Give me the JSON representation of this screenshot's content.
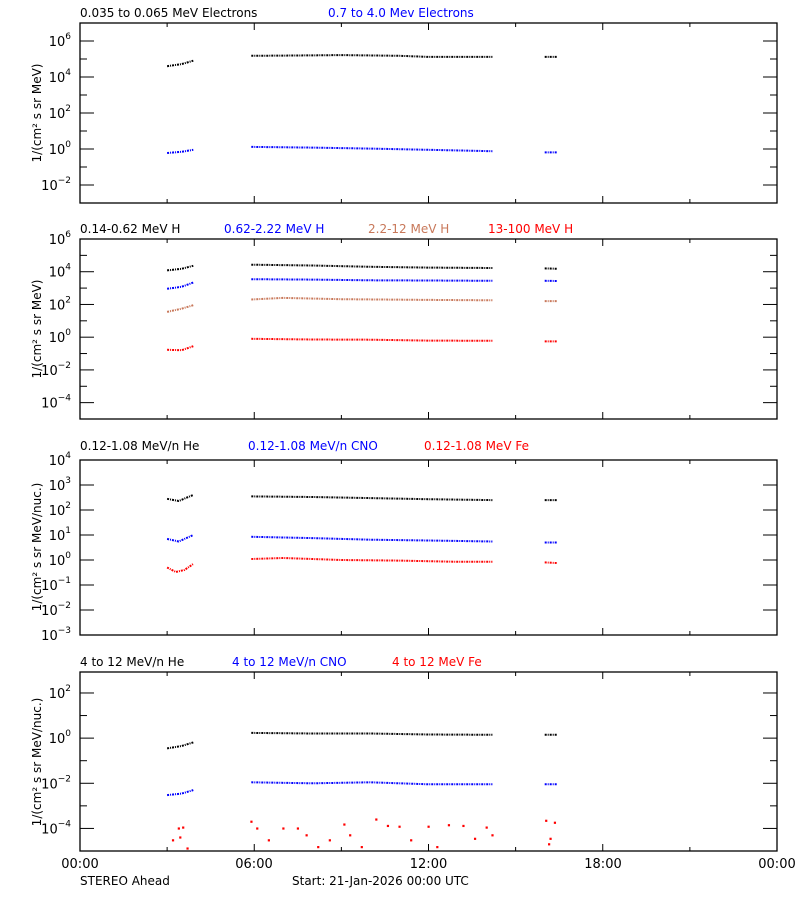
{
  "chart_data": [
    {
      "type": "scatter",
      "ylabel": "1/(cm² s sr MeV)",
      "yscale": "log",
      "ylim": [
        0.001,
        10000000
      ],
      "y_ticks_labeled": [
        -2,
        0,
        2,
        4,
        6
      ],
      "legend": [
        "0.035 to 0.065 MeV Electrons",
        "0.7 to 4.0 Mev Electrons"
      ],
      "series": [
        {
          "name": "0.035 to 0.065 MeV Electrons",
          "color": "#000000",
          "segments": [
            [
              [
                3.0,
                40000
              ],
              [
                3.5,
                52000
              ],
              [
                3.9,
                80000
              ]
            ],
            [
              [
                5.9,
                150000
              ],
              [
                7,
                155000
              ],
              [
                9,
                165000
              ],
              [
                11,
                150000
              ],
              [
                12,
                130000
              ],
              [
                14.2,
                130000
              ]
            ],
            [
              [
                16.0,
                130000
              ],
              [
                16.45,
                130000
              ]
            ]
          ]
        },
        {
          "name": "0.7 to 4.0 Mev Electrons",
          "color": "#0000ff",
          "segments": [
            [
              [
                3.0,
                0.6
              ],
              [
                3.5,
                0.7
              ],
              [
                3.9,
                0.9
              ]
            ],
            [
              [
                5.9,
                1.3
              ],
              [
                8,
                1.2
              ],
              [
                10,
                1.05
              ],
              [
                12,
                0.9
              ],
              [
                14.2,
                0.75
              ]
            ],
            [
              [
                16.0,
                0.65
              ],
              [
                16.45,
                0.65
              ]
            ]
          ]
        }
      ]
    },
    {
      "type": "scatter",
      "ylabel": "1/(cm² s sr MeV)",
      "yscale": "log",
      "ylim": [
        1e-05,
        1000000
      ],
      "y_ticks_labeled": [
        -4,
        -2,
        0,
        2,
        4,
        6
      ],
      "legend": [
        "0.14-0.62 MeV H",
        "0.62-2.22 MeV H",
        "2.2-12 MeV H",
        "13-100 MeV H"
      ],
      "series": [
        {
          "name": "0.14-0.62 MeV H",
          "color": "#000000",
          "segments": [
            [
              [
                3.0,
                12000
              ],
              [
                3.5,
                15000
              ],
              [
                3.9,
                23000
              ]
            ],
            [
              [
                5.9,
                27000
              ],
              [
                8,
                24000
              ],
              [
                10,
                20000
              ],
              [
                12,
                18000
              ],
              [
                14.2,
                17000
              ]
            ],
            [
              [
                16.0,
                16000
              ],
              [
                16.45,
                15000
              ]
            ]
          ]
        },
        {
          "name": "0.62-2.22 MeV H",
          "color": "#0000ff",
          "segments": [
            [
              [
                3.0,
                900
              ],
              [
                3.5,
                1200
              ],
              [
                3.9,
                2200
              ]
            ],
            [
              [
                5.9,
                3500
              ],
              [
                8,
                3300
              ],
              [
                10,
                3000
              ],
              [
                12,
                2900
              ],
              [
                14.2,
                2800
              ]
            ],
            [
              [
                16.0,
                2800
              ],
              [
                16.45,
                2700
              ]
            ]
          ]
        },
        {
          "name": "2.2-12 MeV H",
          "color": "#c8785a",
          "segments": [
            [
              [
                3.0,
                35
              ],
              [
                3.5,
                55
              ],
              [
                3.9,
                90
              ]
            ],
            [
              [
                5.9,
                200
              ],
              [
                7,
                250
              ],
              [
                9,
                210
              ],
              [
                12,
                190
              ],
              [
                14.2,
                180
              ]
            ],
            [
              [
                16.0,
                160
              ],
              [
                16.45,
                160
              ]
            ]
          ]
        },
        {
          "name": "13-100 MeV H",
          "color": "#ff0000",
          "segments": [
            [
              [
                3.0,
                0.17
              ],
              [
                3.5,
                0.16
              ],
              [
                3.9,
                0.28
              ]
            ],
            [
              [
                5.9,
                0.8
              ],
              [
                8,
                0.72
              ],
              [
                10,
                0.7
              ],
              [
                12,
                0.62
              ],
              [
                14.2,
                0.6
              ]
            ],
            [
              [
                16.0,
                0.55
              ],
              [
                16.45,
                0.55
              ]
            ]
          ]
        }
      ]
    },
    {
      "type": "scatter",
      "ylabel": "1/(cm² s sr MeV/nuc.)",
      "yscale": "log",
      "ylim": [
        0.001,
        10000
      ],
      "y_ticks_labeled": [
        -3,
        -2,
        -1,
        0,
        1,
        2,
        3,
        4
      ],
      "legend": [
        "0.12-1.08 MeV/n He",
        "0.12-1.08 MeV/n CNO",
        "0.12-1.08 MeV Fe"
      ],
      "series": [
        {
          "name": "0.12-1.08 MeV/n He",
          "color": "#000000",
          "segments": [
            [
              [
                3.0,
                280
              ],
              [
                3.4,
                230
              ],
              [
                3.9,
                400
              ]
            ],
            [
              [
                5.9,
                350
              ],
              [
                8,
                330
              ],
              [
                10,
                300
              ],
              [
                12,
                270
              ],
              [
                14.2,
                250
              ]
            ],
            [
              [
                16.0,
                250
              ],
              [
                16.45,
                250
              ]
            ]
          ]
        },
        {
          "name": "0.12-1.08 MeV/n CNO",
          "color": "#0000ff",
          "segments": [
            [
              [
                3.0,
                7
              ],
              [
                3.4,
                5.5
              ],
              [
                3.9,
                10
              ]
            ],
            [
              [
                5.9,
                8.5
              ],
              [
                8,
                7.5
              ],
              [
                10,
                6.5
              ],
              [
                12,
                6
              ],
              [
                14.2,
                5.5
              ]
            ],
            [
              [
                16.0,
                5
              ],
              [
                16.45,
                5
              ]
            ]
          ]
        },
        {
          "name": "0.12-1.08 MeV Fe",
          "color": "#ff0000",
          "segments": [
            [
              [
                3.0,
                0.5
              ],
              [
                3.3,
                0.33
              ],
              [
                3.6,
                0.4
              ],
              [
                3.9,
                0.7
              ]
            ],
            [
              [
                5.9,
                1.1
              ],
              [
                7,
                1.2
              ],
              [
                9,
                1.0
              ],
              [
                11,
                0.95
              ],
              [
                13,
                0.85
              ],
              [
                14.2,
                0.85
              ]
            ],
            [
              [
                16.0,
                0.8
              ],
              [
                16.45,
                0.75
              ]
            ]
          ]
        }
      ]
    },
    {
      "type": "scatter",
      "ylabel": "1/(cm² s sr MeV/nuc.)",
      "yscale": "log",
      "ylim": [
        1e-05,
        850
      ],
      "y_ticks_labeled": [
        -4,
        -2,
        0,
        2
      ],
      "legend": [
        "4 to 12 MeV/n He",
        "4 to 12 MeV/n CNO",
        "4 to 12 MeV Fe"
      ],
      "series": [
        {
          "name": "4 to 12 MeV/n He",
          "color": "#000000",
          "segments": [
            [
              [
                3.0,
                0.35
              ],
              [
                3.5,
                0.45
              ],
              [
                3.9,
                0.65
              ]
            ],
            [
              [
                5.9,
                1.7
              ],
              [
                8,
                1.6
              ],
              [
                10,
                1.6
              ],
              [
                12,
                1.45
              ],
              [
                14.2,
                1.4
              ]
            ],
            [
              [
                16.0,
                1.4
              ],
              [
                16.45,
                1.4
              ]
            ]
          ]
        },
        {
          "name": "4 to 12 MeV/n CNO",
          "color": "#0000ff",
          "segments": [
            [
              [
                3.0,
                0.003
              ],
              [
                3.5,
                0.0035
              ],
              [
                3.9,
                0.005
              ]
            ],
            [
              [
                5.9,
                0.011
              ],
              [
                8,
                0.01
              ],
              [
                10,
                0.011
              ],
              [
                12,
                0.009
              ],
              [
                14.2,
                0.009
              ]
            ],
            [
              [
                16.0,
                0.009
              ],
              [
                16.45,
                0.009
              ]
            ]
          ]
        },
        {
          "name": "4 to 12 MeV Fe",
          "color": "#ff0000",
          "points_only": true,
          "segments": [
            [
              [
                3.2,
                3e-05
              ],
              [
                3.4,
                0.0001
              ],
              [
                3.45,
                4e-05
              ],
              [
                3.55,
                0.00011
              ],
              [
                3.7,
                1.3e-05
              ],
              [
                5.9,
                0.0002
              ],
              [
                6.1,
                0.0001
              ],
              [
                6.5,
                3e-05
              ],
              [
                7,
                0.0001
              ],
              [
                7.5,
                0.0001
              ],
              [
                7.8,
                5e-05
              ],
              [
                8.2,
                1.5e-05
              ],
              [
                8.6,
                3e-05
              ],
              [
                9.1,
                0.00015
              ],
              [
                9.3,
                5e-05
              ],
              [
                9.7,
                1.5e-05
              ],
              [
                10.2,
                0.00025
              ],
              [
                10.6,
                0.00013
              ],
              [
                11.0,
                0.00012
              ],
              [
                11.4,
                3e-05
              ],
              [
                12.0,
                0.00012
              ],
              [
                12.3,
                1.5e-05
              ],
              [
                12.7,
                0.00014
              ],
              [
                13.2,
                0.00013
              ],
              [
                13.6,
                3.5e-05
              ],
              [
                14.0,
                0.00011
              ],
              [
                14.2,
                5e-05
              ],
              [
                16.05,
                0.00022
              ],
              [
                16.2,
                3.5e-05
              ],
              [
                16.35,
                0.00018
              ],
              [
                16.15,
                2e-05
              ]
            ]
          ]
        }
      ]
    }
  ],
  "x_axis": {
    "range_hours": [
      0,
      24
    ],
    "tick_labels": [
      "00:00",
      "06:00",
      "12:00",
      "18:00",
      "00:00"
    ]
  },
  "footer": {
    "spacecraft": "STEREO Ahead",
    "start": "Start: 21-Jan-2026 00:00 UTC"
  }
}
